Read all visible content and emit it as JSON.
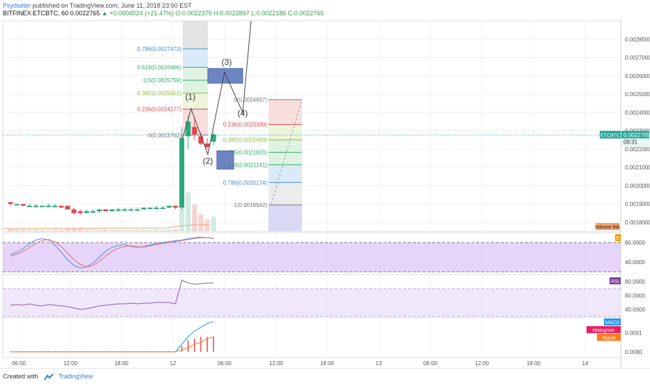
{
  "header": {
    "author": "Psydseter",
    "published": "published on TradingView.com, June 11, 2018 23:50 EST",
    "symbol": "BITFINEX:ETCBTC, 60",
    "last": "0.0022765",
    "change": "▲ +0.0004024 (+21.47%)",
    "ohlc": "O:0.0022379 H:0.0022897 L:0.0022186 C:0.0022765"
  },
  "footer": {
    "created_with": "Created with",
    "brand": "TradingView"
  },
  "colors": {
    "up": "#2aa87a",
    "down": "#e0454b",
    "rsi_line": "#8e5c9c",
    "stoch_k": "#4a90e2",
    "stoch_d": "#e46a6a",
    "macd": "#2196f3",
    "signal": "#ff7a1a",
    "hist": "#e0454b",
    "price_line": "#26a69a"
  },
  "chart_data": [
    {
      "type": "candlestick",
      "title": "",
      "symbol_tag": "ETCBTC",
      "price_label": "0.0022765",
      "countdown": "09:31",
      "ylim": [
        0.00175,
        0.0029
      ],
      "y_ticks": [
        "0.0028000",
        "0.0027000",
        "0.0026000",
        "0.0025000",
        "0.0024000",
        "0.0023000",
        "0.0022000",
        "0.0021000",
        "0.0020000",
        "0.0019000",
        "0.0018000"
      ],
      "x_ticks": [
        "06:00",
        "12:00",
        "18:00",
        "12",
        "06:00",
        "12:00",
        "18:00",
        "13",
        "06:00",
        "12:00",
        "18:00",
        "14"
      ],
      "candles": [
        {
          "o": 0.00191,
          "c": 0.0019,
          "h": 0.00191,
          "l": 0.00189
        },
        {
          "o": 0.0019,
          "c": 0.0019,
          "h": 0.0019,
          "l": 0.00189
        },
        {
          "o": 0.0019,
          "c": 0.00189,
          "h": 0.0019,
          "l": 0.00189
        },
        {
          "o": 0.00189,
          "c": 0.00189,
          "h": 0.0019,
          "l": 0.00189
        },
        {
          "o": 0.00189,
          "c": 0.00189,
          "h": 0.0019,
          "l": 0.00188
        },
        {
          "o": 0.00189,
          "c": 0.00189,
          "h": 0.00189,
          "l": 0.00189
        },
        {
          "o": 0.00189,
          "c": 0.00189,
          "h": 0.0019,
          "l": 0.00189
        },
        {
          "o": 0.00189,
          "c": 0.00189,
          "h": 0.0019,
          "l": 0.00188
        },
        {
          "o": 0.00189,
          "c": 0.00188,
          "h": 0.00189,
          "l": 0.00188
        },
        {
          "o": 0.00189,
          "c": 0.00187,
          "h": 0.00189,
          "l": 0.00187
        },
        {
          "o": 0.00187,
          "c": 0.00185,
          "h": 0.00188,
          "l": 0.00184
        },
        {
          "o": 0.00186,
          "c": 0.00185,
          "h": 0.00187,
          "l": 0.00184
        },
        {
          "o": 0.00185,
          "c": 0.00186,
          "h": 0.00187,
          "l": 0.00185
        },
        {
          "o": 0.00186,
          "c": 0.00186,
          "h": 0.00187,
          "l": 0.00185
        },
        {
          "o": 0.00186,
          "c": 0.00187,
          "h": 0.00187,
          "l": 0.00185
        },
        {
          "o": 0.00187,
          "c": 0.00186,
          "h": 0.00187,
          "l": 0.00186
        },
        {
          "o": 0.00186,
          "c": 0.00187,
          "h": 0.00187,
          "l": 0.00186
        },
        {
          "o": 0.00187,
          "c": 0.00187,
          "h": 0.00188,
          "l": 0.00186
        },
        {
          "o": 0.00187,
          "c": 0.00187,
          "h": 0.00188,
          "l": 0.00187
        },
        {
          "o": 0.00187,
          "c": 0.00187,
          "h": 0.00188,
          "l": 0.00187
        },
        {
          "o": 0.00187,
          "c": 0.00187,
          "h": 0.00188,
          "l": 0.00187
        },
        {
          "o": 0.00187,
          "c": 0.00188,
          "h": 0.00188,
          "l": 0.00187
        },
        {
          "o": 0.00188,
          "c": 0.00188,
          "h": 0.00188,
          "l": 0.00187
        },
        {
          "o": 0.00188,
          "c": 0.00188,
          "h": 0.00189,
          "l": 0.00187
        },
        {
          "o": 0.00188,
          "c": 0.00188,
          "h": 0.00189,
          "l": 0.00188
        },
        {
          "o": 0.00188,
          "c": 0.00189,
          "h": 0.00189,
          "l": 0.00188
        },
        {
          "o": 0.00189,
          "c": 0.00188,
          "h": 0.00189,
          "l": 0.00187
        },
        {
          "o": 0.00188,
          "c": 0.00226,
          "h": 0.00232,
          "l": 0.00187
        },
        {
          "o": 0.00227,
          "c": 0.00235,
          "h": 0.00238,
          "l": 0.0022
        },
        {
          "o": 0.00232,
          "c": 0.00228,
          "h": 0.00237,
          "l": 0.00225
        },
        {
          "o": 0.00227,
          "c": 0.00223,
          "h": 0.00229,
          "l": 0.00222
        },
        {
          "o": 0.00223,
          "c": 0.00221,
          "h": 0.00226,
          "l": 0.0022
        },
        {
          "o": 0.00224,
          "c": 0.00228,
          "h": 0.00229,
          "l": 0.00222
        }
      ],
      "volume": [
        0.05,
        0.04,
        0.04,
        0.03,
        0.04,
        0.03,
        0.03,
        0.04,
        0.03,
        0.05,
        0.06,
        0.05,
        0.04,
        0.04,
        0.03,
        0.04,
        0.03,
        0.04,
        0.03,
        0.03,
        0.04,
        0.03,
        0.03,
        0.04,
        0.03,
        0.04,
        0.05,
        1.0,
        0.8,
        0.55,
        0.35,
        0.25,
        0.3
      ],
      "last_price": 0.0022765,
      "fib_left": {
        "levels": [
          {
            "ratio": "0.786",
            "price": "0.0027473",
            "color": "#3b8ed8"
          },
          {
            "ratio": "0.618",
            "price": "0.0026466",
            "color": "#2bb06a"
          },
          {
            "ratio": "0.5",
            "price": "0.0025759",
            "color": "#2bb06a"
          },
          {
            "ratio": "0.382",
            "price": "0.0025052",
            "color": "#8bbf37"
          },
          {
            "ratio": "0.236",
            "price": "0.0024177",
            "color": "#e0454b"
          },
          {
            "ratio": "0",
            "price": "0.0022762",
            "color": "#777777"
          }
        ]
      },
      "fib_right": {
        "levels": [
          {
            "ratio": "0",
            "price": "0.0024697",
            "color": "#777777"
          },
          {
            "ratio": "0.236",
            "price": "0.0023339",
            "color": "#e0454b"
          },
          {
            "ratio": "0.382",
            "price": "0.0022499",
            "color": "#8bbf37"
          },
          {
            "ratio": "0.5",
            "price": "0.0021820",
            "color": "#2bb06a"
          },
          {
            "ratio": "0.618",
            "price": "0.0021141",
            "color": "#2bb06a"
          },
          {
            "ratio": "0.786",
            "price": "0.0020174",
            "color": "#3b8ed8"
          },
          {
            "ratio": "1",
            "price": "0.0018942",
            "color": "#777777"
          }
        ]
      },
      "wave_labels": [
        "(1)",
        "(2)",
        "(3)",
        "(4)"
      ]
    },
    {
      "type": "line",
      "title": "",
      "legend_tag": "D",
      "y_ticks": [
        "80.0000",
        "40.0000"
      ],
      "ylim": [
        20,
        100
      ],
      "band": [
        20,
        80
      ],
      "series": [
        {
          "values": [
            55,
            60,
            68,
            78,
            85,
            88,
            85,
            75,
            60,
            45,
            33,
            28,
            30,
            38,
            50,
            62,
            70,
            74,
            76,
            72,
            70,
            72,
            75,
            78,
            80,
            82,
            84,
            85,
            88,
            90,
            91,
            90,
            88
          ]
        },
        {
          "values": [
            52,
            56,
            62,
            70,
            78,
            84,
            86,
            82,
            72,
            58,
            45,
            35,
            30,
            33,
            42,
            52,
            62,
            68,
            72,
            73,
            71,
            71,
            73,
            76,
            78,
            80,
            82,
            84,
            86,
            88,
            90,
            90,
            89
          ]
        }
      ]
    },
    {
      "type": "line",
      "title": "",
      "legend_tag": "RSI",
      "y_ticks": [
        "80.0000",
        "60.0000",
        "40.0000"
      ],
      "ylim": [
        30,
        90
      ],
      "band": [
        30,
        70
      ],
      "series": [
        {
          "values": [
            46,
            47,
            46,
            48,
            46,
            45,
            47,
            46,
            45,
            44,
            42,
            40,
            41,
            43,
            45,
            46,
            47,
            48,
            48,
            49,
            48,
            49,
            49,
            50,
            50,
            50,
            48,
            82,
            78,
            76,
            77,
            78,
            78
          ]
        }
      ]
    },
    {
      "type": "line",
      "title": "",
      "legend_tags": [
        "MACD",
        "Histogram",
        "Signal"
      ],
      "y_ticks": [
        "0.0001",
        "0.0000"
      ],
      "ylim": [
        -3e-05,
        0.00018
      ],
      "series": [
        {
          "values": [
            0.0,
            0.0,
            0.0,
            0.0,
            0.0,
            0.0,
            0.0,
            0.0,
            0.0,
            0.0,
            0.0,
            0.0,
            0.0,
            0.0,
            0.0,
            0.0,
            0.0,
            0.0,
            0.0,
            0.0,
            0.0,
            0.0,
            0.0,
            0.0,
            0.0,
            0.0,
            0.0,
            4e-05,
            8e-05,
            0.00011,
            0.00013,
            0.00015,
            0.00016
          ]
        },
        {
          "values": [
            0.0,
            0.0,
            0.0,
            0.0,
            0.0,
            0.0,
            0.0,
            0.0,
            0.0,
            0.0,
            0.0,
            0.0,
            0.0,
            0.0,
            0.0,
            0.0,
            0.0,
            0.0,
            0.0,
            0.0,
            0.0,
            0.0,
            0.0,
            0.0,
            0.0,
            0.0,
            0.0,
            1e-05,
            2e-05,
            4e-05,
            5e-05,
            7e-05,
            8e-05
          ]
        }
      ],
      "histogram": [
        0,
        0,
        0,
        0,
        0,
        0,
        0,
        0,
        0,
        0,
        0,
        0,
        0,
        0,
        0,
        0,
        0,
        0,
        0,
        0,
        0,
        0,
        0,
        0,
        0,
        0,
        0,
        3e-05,
        6e-05,
        7e-05,
        8e-05,
        8e-05,
        8e-05
      ]
    }
  ]
}
